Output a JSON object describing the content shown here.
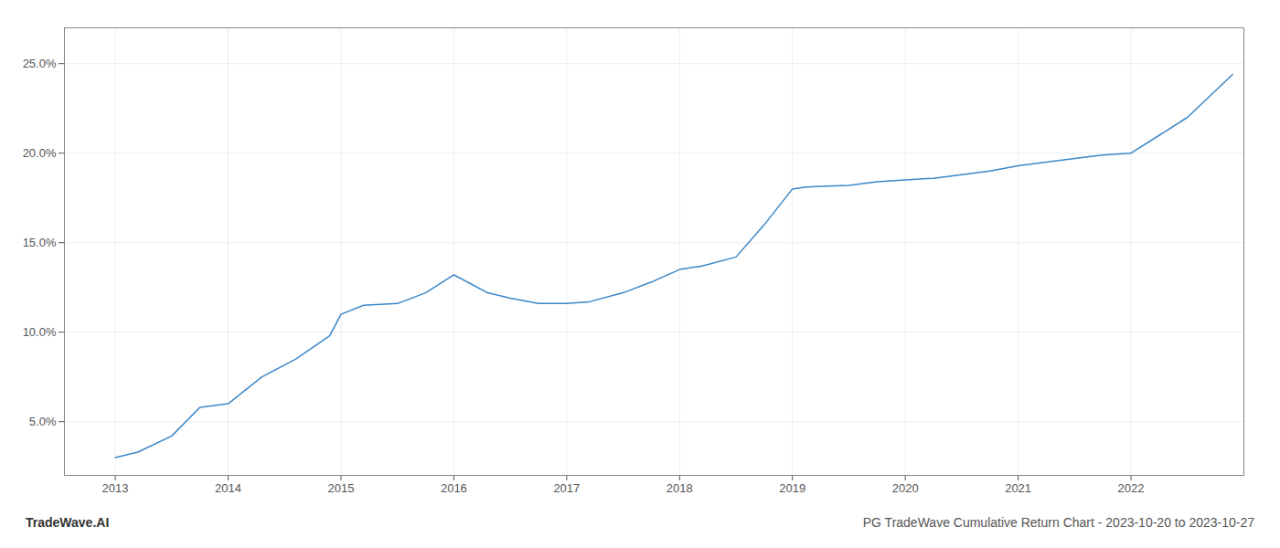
{
  "chart_data": {
    "type": "line",
    "title": "PG TradeWave Cumulative Return Chart - 2023-10-20 to 2023-10-27",
    "annotations": [
      "TradeWave.AI"
    ],
    "x": [
      2013.0,
      2013.2,
      2013.5,
      2013.75,
      2014.0,
      2014.3,
      2014.6,
      2014.9,
      2015.0,
      2015.2,
      2015.5,
      2015.75,
      2016.0,
      2016.15,
      2016.3,
      2016.5,
      2016.75,
      2017.0,
      2017.2,
      2017.5,
      2017.75,
      2018.0,
      2018.2,
      2018.5,
      2018.75,
      2019.0,
      2019.1,
      2019.25,
      2019.5,
      2019.75,
      2020.0,
      2020.25,
      2020.5,
      2020.75,
      2021.0,
      2021.25,
      2021.5,
      2021.75,
      2022.0,
      2022.5,
      2022.9
    ],
    "values": [
      3.0,
      3.3,
      4.2,
      5.8,
      6.0,
      7.5,
      8.5,
      9.8,
      11.0,
      11.5,
      11.6,
      12.2,
      13.2,
      12.7,
      12.2,
      11.9,
      11.6,
      11.6,
      11.7,
      12.2,
      12.8,
      13.5,
      13.7,
      14.2,
      16.0,
      18.0,
      18.1,
      18.15,
      18.2,
      18.4,
      18.5,
      18.6,
      18.8,
      19.0,
      19.3,
      19.5,
      19.7,
      19.9,
      20.0,
      22.0,
      24.4
    ],
    "color": "#3a87c8",
    "xlim": [
      2012.55,
      2023.0
    ],
    "xticks": [
      2013,
      2014,
      2015,
      2016,
      2017,
      2018,
      2019,
      2020,
      2021,
      2022
    ],
    "ylim": [
      2.0,
      27.0
    ],
    "yticks": [
      {
        "value": 5.0,
        "label": "5.0%"
      },
      {
        "value": 10.0,
        "label": "10.0%"
      },
      {
        "value": 15.0,
        "label": "15.0%"
      },
      {
        "value": 20.0,
        "label": "20.0%"
      },
      {
        "value": 25.0,
        "label": "25.0%"
      }
    ],
    "grid": true
  }
}
